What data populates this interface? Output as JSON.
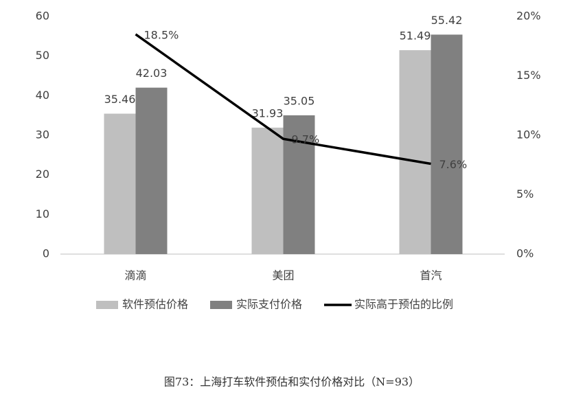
{
  "chart_data": {
    "type": "bar-line",
    "caption": "图73：上海打车软件预估和实付价格对比（N=93）",
    "categories": [
      "滴滴",
      "美团",
      "首汽"
    ],
    "series": [
      {
        "name": "软件预估价格",
        "color": "#bfbfbf",
        "type": "bar",
        "values": [
          35.46,
          31.93,
          51.49
        ]
      },
      {
        "name": "实际支付价格",
        "color": "#808080",
        "type": "bar",
        "values": [
          42.03,
          35.05,
          55.42
        ]
      },
      {
        "name": "实际高于预估的比例",
        "color": "#000000",
        "type": "line",
        "axis": "y2",
        "values": [
          18.5,
          9.7,
          7.6
        ],
        "value_labels": [
          "18.5%",
          "9.7%",
          "7.6%"
        ]
      }
    ],
    "ylim": [
      0,
      60
    ],
    "yticks": [
      0,
      10,
      20,
      30,
      40,
      50,
      60
    ],
    "y2lim": [
      0,
      20
    ],
    "y2ticks": [
      {
        "value": 0,
        "label": "0%"
      },
      {
        "value": 5,
        "label": "5%"
      },
      {
        "value": 10,
        "label": "10%"
      },
      {
        "value": 15,
        "label": "15%"
      },
      {
        "value": 20,
        "label": "20%"
      }
    ],
    "grid": false,
    "legend": "bottom"
  }
}
